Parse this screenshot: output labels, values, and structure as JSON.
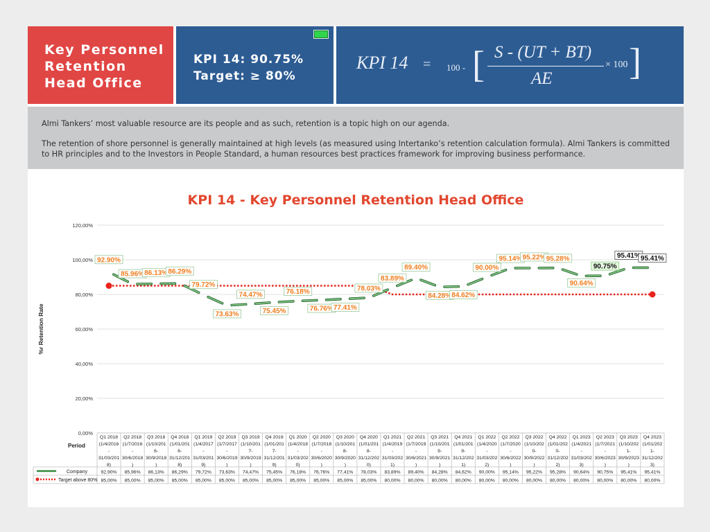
{
  "header": {
    "title_lines": [
      "Key Personnel",
      "Retention",
      "Head Office"
    ],
    "kpi_value_line": "KPI 14: 90.75%",
    "target_line": "Target: ≥ 80%",
    "status_color": "#2fd64b"
  },
  "formula": {
    "lhs": "KPI  14",
    "equals": "=",
    "minuend": "100 -",
    "left_bracket": "[",
    "numerator": "S - (UT + BT)",
    "denominator": "AE",
    "multiplier": "× 100",
    "right_bracket": "]"
  },
  "intro": {
    "p1": "Almi Tankers’ most valuable resource are its people and as such, retention is a topic high on our agenda.",
    "p2": "The retention of shore personnel is generally maintained at high levels (as measured using Intertanko’s retention calculation formula). Almi Tankers is committed to HR principles and to the Investors in People Standard, a human resources best practices framework for improving business performance."
  },
  "chart_data": {
    "type": "line",
    "title": "KPI 14 - Key Personnel Retention Head Office",
    "ylabel": "%r Retention Rate",
    "xlabel": "Period",
    "ylim": [
      0,
      120
    ],
    "yticks": [
      "0,00%",
      "20,00%",
      "40,00%",
      "60,00%",
      "80,00%",
      "100,00%",
      "120,00%"
    ],
    "categories": [
      [
        "Q1 2018",
        "(1/4/2016",
        "-",
        "31/03/201",
        "8)"
      ],
      [
        "Q2 2018",
        "(1/7/2016",
        "-",
        "30/6/2018",
        ")"
      ],
      [
        "Q3 2018",
        "(1/10/201",
        "6-",
        "30/9/2018",
        ")"
      ],
      [
        "Q4 2018",
        "(1/01/201",
        "6-",
        "31/12/201",
        "8)"
      ],
      [
        "Q1 2019",
        "(1/4/2017",
        "-",
        "31/03/201",
        "9)"
      ],
      [
        "Q2 2019",
        "(1/7/2017",
        "-",
        "30/6/2019",
        ")"
      ],
      [
        "Q3 2019",
        "(1/10/201",
        "7-",
        "30/9/2019",
        ")"
      ],
      [
        "Q4 2019",
        "(1/01/201",
        "7-",
        "31/12/201",
        "9)"
      ],
      [
        "Q1 2020",
        "(1/4/2018",
        "-",
        "31/03/202",
        "0)"
      ],
      [
        "Q2 2020",
        "(1/7/2018",
        "-",
        "30/6/2020",
        ")"
      ],
      [
        "Q3 2020",
        "(1/10/201",
        "8-",
        "30/9/2020",
        ")"
      ],
      [
        "Q4 2020",
        "(1/01/201",
        "8-",
        "31/12/202",
        "0)"
      ],
      [
        "Q1 2021",
        "(1/4/2019",
        "-",
        "31/03/202",
        "1)"
      ],
      [
        "Q2 2021",
        "(1/7/2019",
        "-",
        "30/6/2021",
        ")"
      ],
      [
        "Q3 2021",
        "(1/10/201",
        "9-",
        "30/9/2021",
        ")"
      ],
      [
        "Q4 2021",
        "(1/01/201",
        "9-",
        "31/12/202",
        "1)"
      ],
      [
        "Q1 2022",
        "(1/4/2020",
        "-",
        "31/03/202",
        "2)"
      ],
      [
        "Q2 2022",
        "(1/7/2020",
        "-",
        "30/6/2022",
        ")"
      ],
      [
        "Q3 2022",
        "(1/10/202",
        "0-",
        "30/9/2022",
        ")"
      ],
      [
        "Q4 2022",
        "(1/01/202",
        "0-",
        "31/12/202",
        "2)"
      ],
      [
        "Q1 2023",
        "(1/4/2021",
        "-",
        "31/03/202",
        "3)"
      ],
      [
        "Q2 2023",
        "(1/7/2021",
        "-",
        "30/6/2023",
        ")"
      ],
      [
        "Q3 2023",
        "(1/10/202",
        "1-",
        "30/9/2023",
        ")"
      ],
      [
        "Q4 2023",
        "(1/01/202",
        "1-",
        "31/12/202",
        "3)"
      ]
    ],
    "series": [
      {
        "name": "Company",
        "color": "#2f8a3a",
        "values": [
          92.9,
          85.96,
          86.13,
          86.29,
          79.72,
          73.63,
          74.47,
          75.45,
          76.18,
          76.76,
          77.41,
          78.03,
          83.89,
          89.4,
          84.28,
          84.62,
          90.0,
          95.14,
          95.22,
          95.28,
          90.64,
          90.75,
          95.41,
          95.41
        ],
        "table_labels": [
          "92,90%",
          "85,96%",
          "86,13%",
          "86,29%",
          "79,72%",
          "73,63%",
          "74,47%",
          "75,45%",
          "76,18%",
          "76,76%",
          "77,41%",
          "78,03%",
          "83,89%",
          "89,40%",
          "84,28%",
          "84,62%",
          "90,00%",
          "95,14%",
          "95,22%",
          "95,28%",
          "90,64%",
          "90,75%",
          "95,41%",
          "95,41%"
        ],
        "data_labels": [
          "92.90%",
          "85.96%",
          "86.13%",
          "86.29%",
          "79.72%",
          "73.63%",
          "74.47%",
          "75.45%",
          "76.18%",
          "76.76%",
          "77.41%",
          "78.03%",
          "83.89%",
          "89.40%",
          "84.28%",
          "84.62%",
          "90.00%",
          "95.14%",
          "95.22%",
          "95.28%",
          "90.64%",
          "90.75%",
          "95.41%",
          "95.41%"
        ]
      },
      {
        "name": "Target above 80%",
        "color": "#e8231b",
        "values": [
          85,
          85,
          85,
          85,
          85,
          85,
          85,
          85,
          85,
          85,
          85,
          85,
          80,
          80,
          80,
          80,
          80,
          80,
          80,
          80,
          80,
          80,
          80,
          80
        ],
        "table_labels": [
          "85,00%",
          "85,00%",
          "85,00%",
          "85,00%",
          "85,00%",
          "85,00%",
          "85,00%",
          "85,00%",
          "85,00%",
          "85,00%",
          "85,00%",
          "85,00%",
          "80,00%",
          "80,00%",
          "80,00%",
          "80,00%",
          "80,00%",
          "80,00%",
          "80,00%",
          "80,00%",
          "80,00%",
          "80,00%",
          "80,00%",
          "80,00%"
        ]
      }
    ],
    "grid": true,
    "legend": "data-table-left"
  }
}
